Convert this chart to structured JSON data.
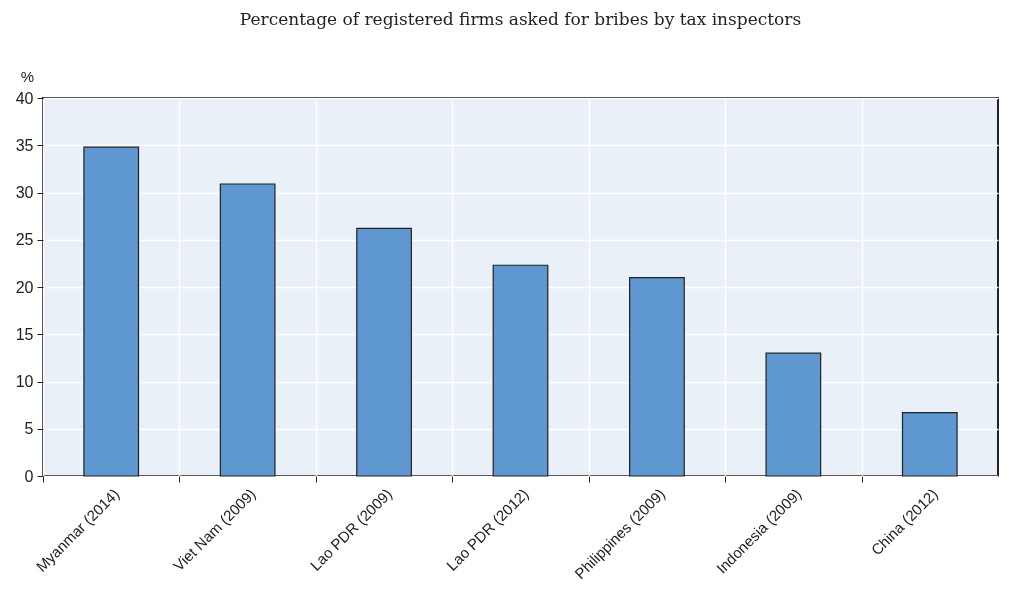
{
  "chart_data": {
    "type": "bar",
    "subtitle": "Percentage of registered firms asked for bribes by tax inspectors",
    "ylabel": "%",
    "categories": [
      "Myanmar (2014)",
      "Viet Nam (2009)",
      "Lao PDR (2009)",
      "Lao PDR (2012)",
      "Philippines (2009)",
      "Indonesia (2009)",
      "China (2012)"
    ],
    "values": [
      34.8,
      30.9,
      26.2,
      22.3,
      21.0,
      13.0,
      6.7
    ],
    "color": "#5f97d0",
    "ylim": [
      0,
      40
    ],
    "yticks": [
      0,
      5,
      10,
      15,
      20,
      25,
      30,
      35,
      40
    ],
    "grid": true
  }
}
